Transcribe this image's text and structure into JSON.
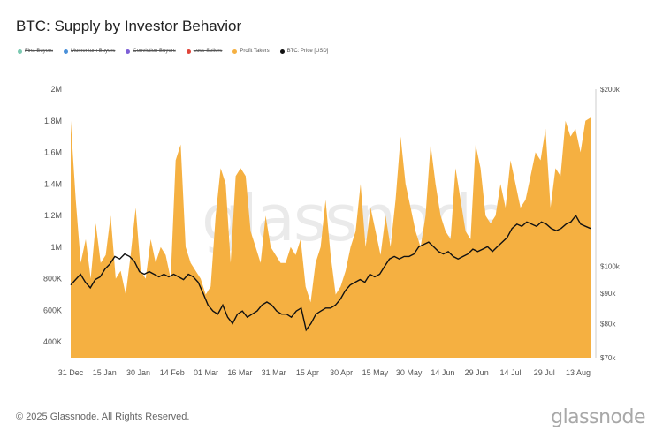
{
  "title": "BTC: Supply by Investor Behavior",
  "legend": [
    {
      "label": "First Buyers",
      "color": "#7bc9b1",
      "active": false
    },
    {
      "label": "Momentum Buyers",
      "color": "#4a90d9",
      "active": false
    },
    {
      "label": "Conviction Buyers",
      "color": "#7d5fd6",
      "active": false
    },
    {
      "label": "Loss Sellers",
      "color": "#e0453a",
      "active": false
    },
    {
      "label": "Profit Takers",
      "color": "#f5b041",
      "active": true
    },
    {
      "label": "BTC: Price [USD]",
      "color": "#111111",
      "active": true
    }
  ],
  "footer": "© 2025 Glassnode. All Rights Reserved.",
  "brand": "glassnode",
  "watermark": "glassnode",
  "chart_data": {
    "type": "area",
    "grid": false,
    "legend_position": "top-left",
    "x_ticks": [
      "31 Dec",
      "15 Jan",
      "30 Jan",
      "14 Feb",
      "01 Mar",
      "16 Mar",
      "31 Mar",
      "15 Apr",
      "30 Apr",
      "15 May",
      "30 May",
      "14 Jun",
      "29 Jun",
      "14 Jul",
      "29 Jul",
      "13 Aug"
    ],
    "y_left_ticks": [
      "400K",
      "600K",
      "800K",
      "1M",
      "1.2M",
      "1.4M",
      "1.6M",
      "1.8M",
      "2M"
    ],
    "y_left_lim": [
      300000,
      2000000
    ],
    "y_right_ticks": [
      "$70k",
      "$80k",
      "$90k",
      "$100k",
      "$200k"
    ],
    "y_right_scale": "log",
    "y_right_lim": [
      70000,
      200000
    ],
    "series": [
      {
        "name": "Profit Takers",
        "color": "#f5b041",
        "axis": "left",
        "values": [
          1800000,
          1300000,
          900000,
          1050000,
          800000,
          1150000,
          900000,
          950000,
          1200000,
          800000,
          850000,
          700000,
          950000,
          1250000,
          850000,
          800000,
          1050000,
          900000,
          1000000,
          950000,
          800000,
          1550000,
          1650000,
          1000000,
          900000,
          850000,
          800000,
          700000,
          750000,
          1200000,
          1500000,
          1400000,
          900000,
          1450000,
          1500000,
          1450000,
          1100000,
          1000000,
          900000,
          1200000,
          1000000,
          950000,
          900000,
          900000,
          1000000,
          950000,
          1050000,
          750000,
          650000,
          900000,
          1000000,
          1300000,
          950000,
          700000,
          750000,
          850000,
          1000000,
          1100000,
          1400000,
          1000000,
          1250000,
          1100000,
          950000,
          1200000,
          1000000,
          1300000,
          1700000,
          1400000,
          1250000,
          1100000,
          1000000,
          1200000,
          1650000,
          1400000,
          1200000,
          1100000,
          1050000,
          1500000,
          1300000,
          1100000,
          1050000,
          1650000,
          1500000,
          1200000,
          1150000,
          1200000,
          1400000,
          1250000,
          1550000,
          1400000,
          1250000,
          1300000,
          1450000,
          1600000,
          1550000,
          1750000,
          1250000,
          1500000,
          1450000,
          1800000,
          1700000,
          1750000,
          1600000,
          1800000,
          1820000
        ]
      },
      {
        "name": "BTC: Price [USD]",
        "color": "#111111",
        "axis": "right",
        "values": [
          93000,
          95000,
          97000,
          94000,
          92000,
          95000,
          96000,
          99000,
          101000,
          104000,
          103000,
          105000,
          104000,
          102000,
          98000,
          97000,
          98000,
          97000,
          96000,
          97000,
          96000,
          97000,
          96000,
          95000,
          97000,
          96000,
          94000,
          90000,
          86000,
          84000,
          83000,
          86000,
          82000,
          80000,
          83000,
          84000,
          82000,
          83000,
          84000,
          86000,
          87000,
          86000,
          84000,
          83000,
          83000,
          82000,
          84000,
          85000,
          78000,
          80000,
          83000,
          84000,
          85000,
          85000,
          86000,
          88000,
          91000,
          93000,
          94000,
          95000,
          94000,
          97000,
          96000,
          97000,
          100000,
          103000,
          104000,
          103000,
          104000,
          104000,
          105000,
          108000,
          109000,
          110000,
          108000,
          106000,
          105000,
          106000,
          104000,
          103000,
          104000,
          105000,
          107000,
          106000,
          107000,
          108000,
          106000,
          108000,
          110000,
          112000,
          116000,
          118000,
          117000,
          119000,
          118000,
          117000,
          119000,
          118000,
          116000,
          115000,
          116000,
          118000,
          119000,
          122000,
          118000,
          117000,
          116000
        ]
      }
    ]
  }
}
